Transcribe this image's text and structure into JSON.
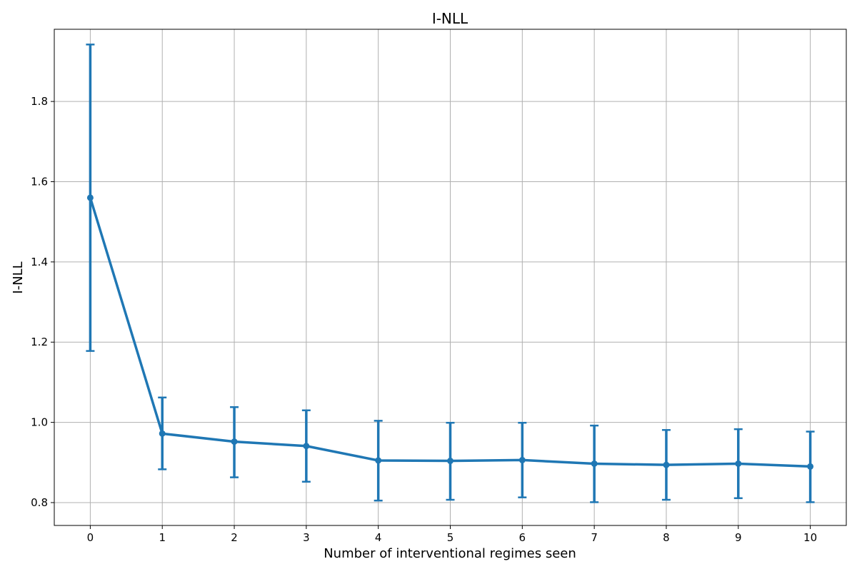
{
  "chart_data": {
    "type": "line",
    "title": "I-NLL",
    "xlabel": "Number of interventional regimes seen",
    "ylabel": "I-NLL",
    "x": [
      0,
      1,
      2,
      3,
      4,
      5,
      6,
      7,
      8,
      9,
      10
    ],
    "x_ticks": [
      "0",
      "1",
      "2",
      "3",
      "4",
      "5",
      "6",
      "7",
      "8",
      "9",
      "10"
    ],
    "y_ticks": [
      "0.8",
      "1.0",
      "1.2",
      "1.4",
      "1.6",
      "1.8"
    ],
    "xlim": [
      -0.5,
      10.5
    ],
    "ylim": [
      0.743,
      1.98
    ],
    "grid": true,
    "series": [
      {
        "values": [
          1.56,
          0.972,
          0.952,
          0.941,
          0.905,
          0.904,
          0.906,
          0.897,
          0.894,
          0.897,
          0.89
        ],
        "err_low": [
          1.178,
          0.883,
          0.863,
          0.852,
          0.805,
          0.807,
          0.813,
          0.801,
          0.807,
          0.811,
          0.801
        ],
        "err_high": [
          1.942,
          1.062,
          1.038,
          1.03,
          1.004,
          0.999,
          0.999,
          0.992,
          0.981,
          0.983,
          0.977
        ],
        "color": "#1f77b4"
      }
    ]
  }
}
